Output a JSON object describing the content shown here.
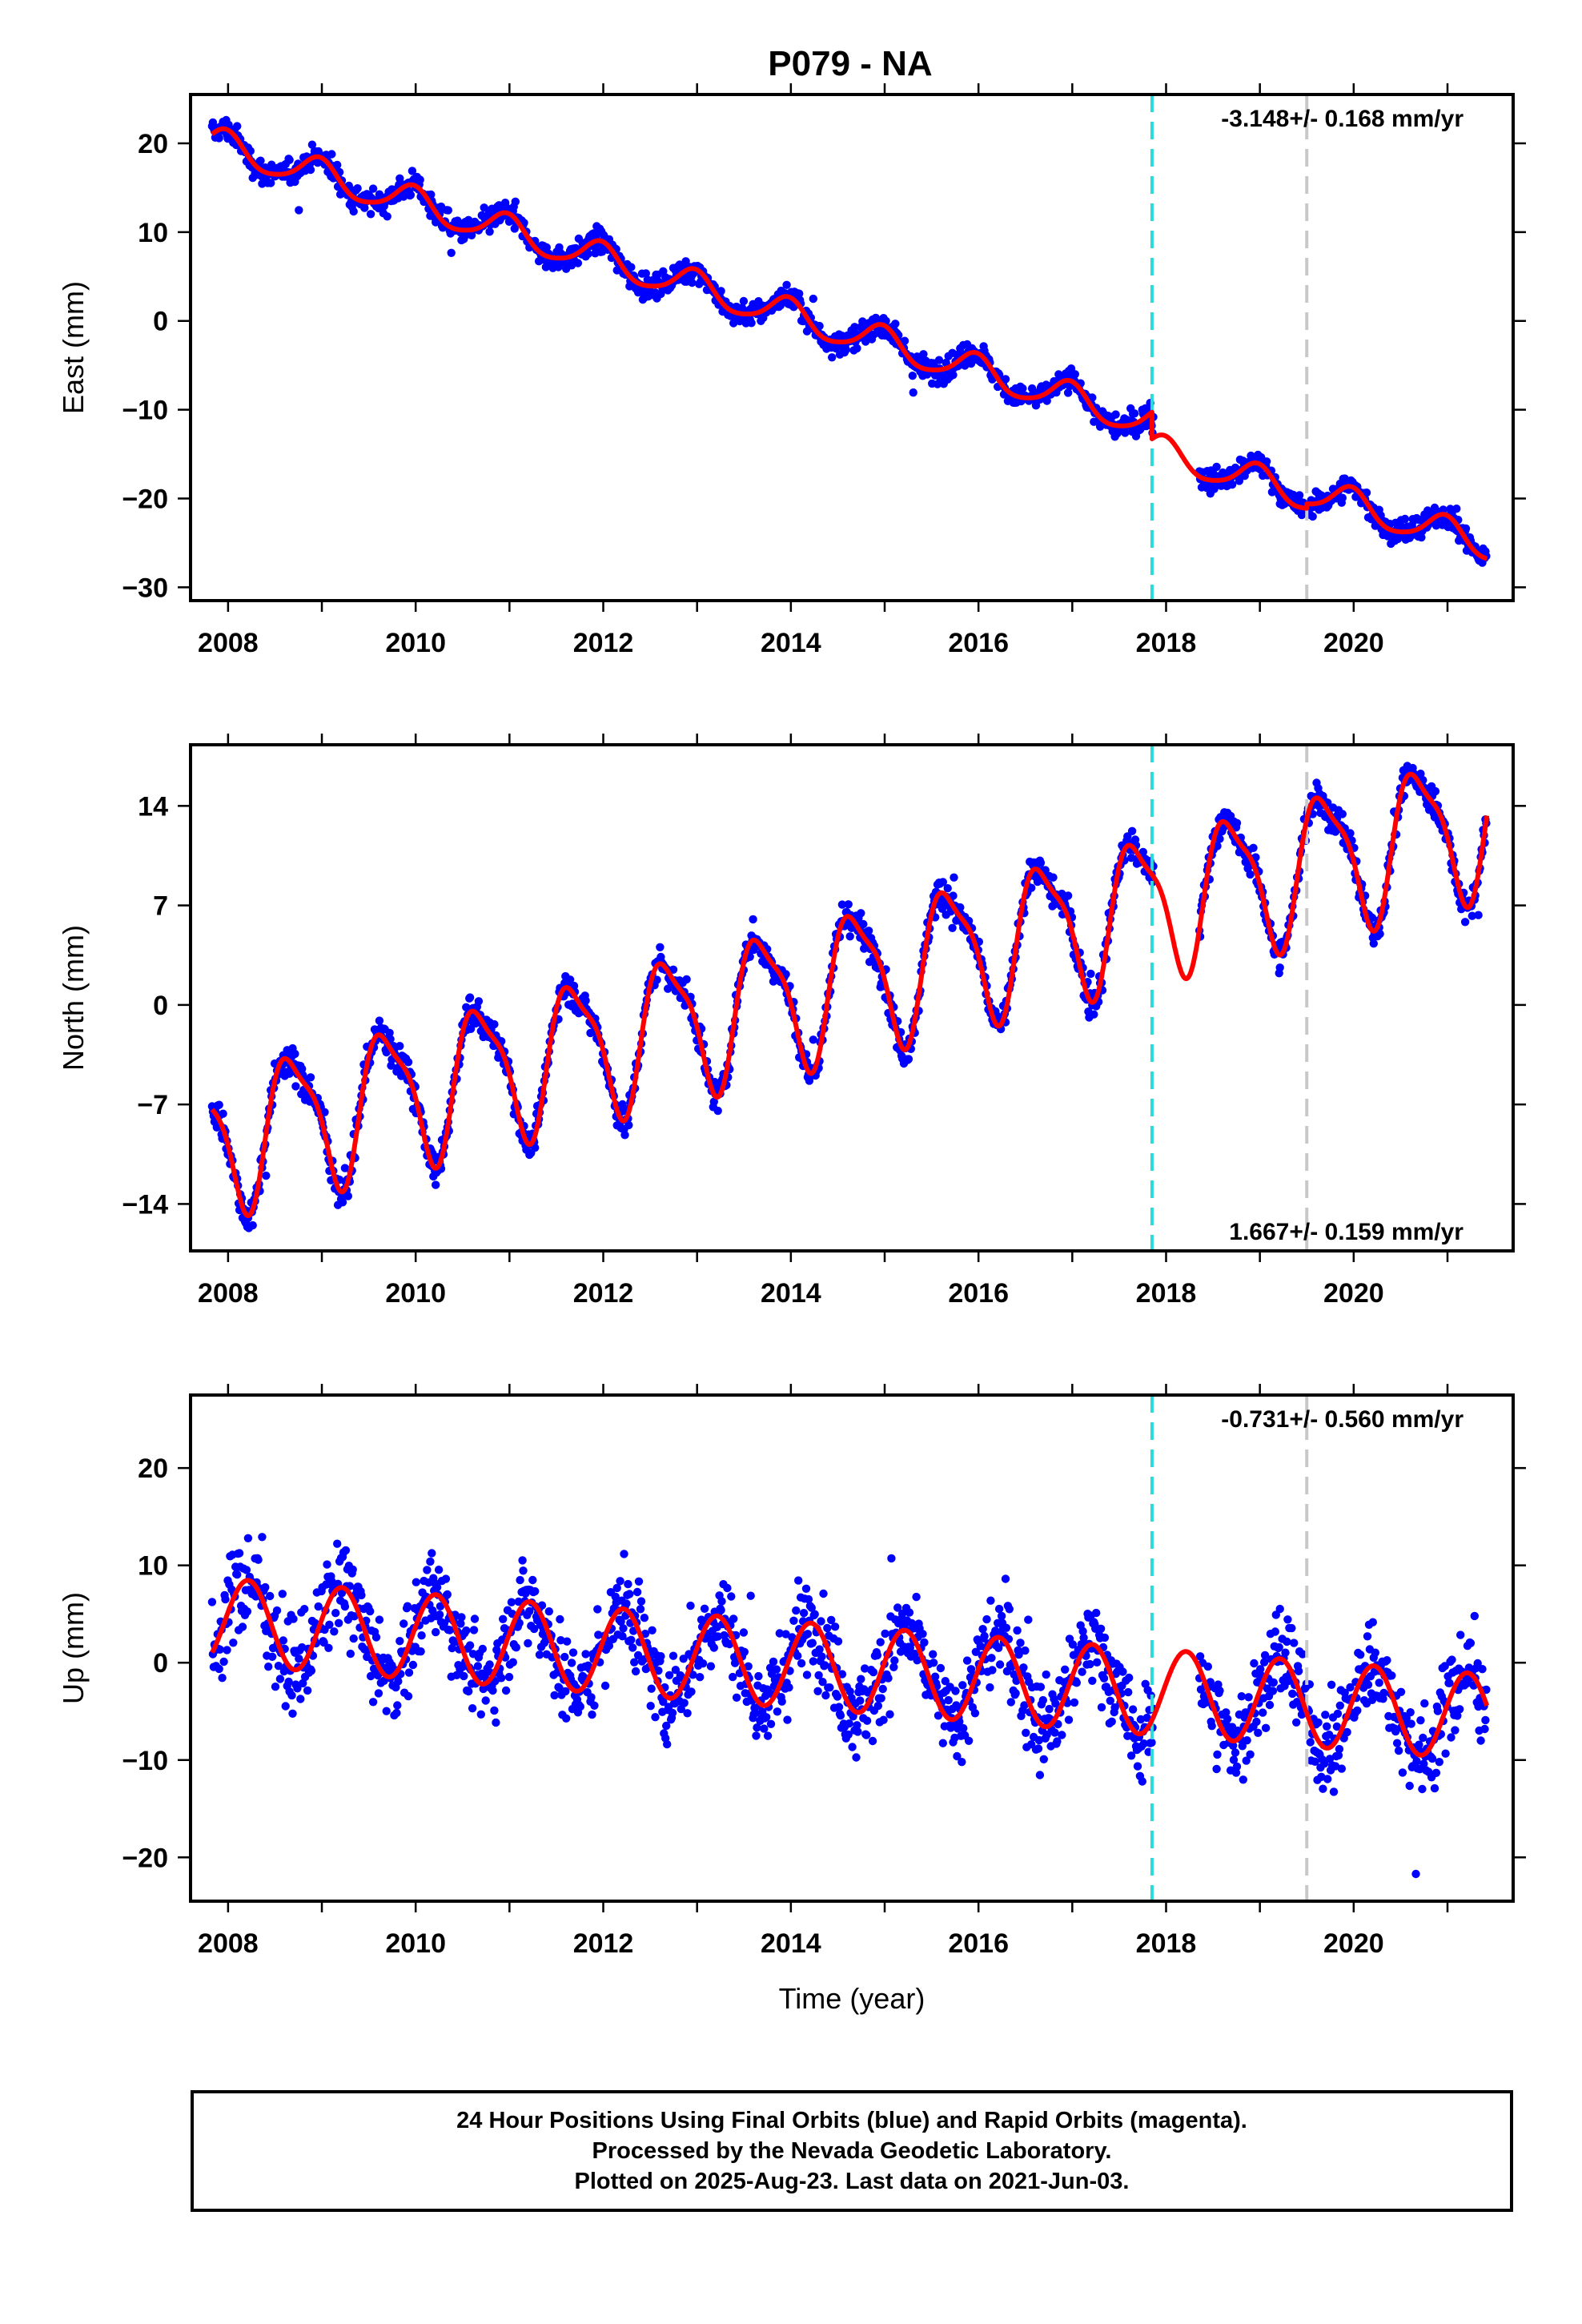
{
  "title": "P079 - NA",
  "chart_data": [
    {
      "type": "scatter",
      "component": "east",
      "ylabel": "East (mm)",
      "xlabel": "",
      "xlim": [
        2007.6,
        2021.7
      ],
      "ylim": [
        -31.5,
        25.5
      ],
      "yticks": [
        20,
        10,
        0,
        -10,
        -20,
        -30
      ],
      "xticks": [
        2008,
        2010,
        2012,
        2014,
        2016,
        2018,
        2020
      ],
      "rate_text": "-3.148+/- 0.168 mm/yr",
      "rate_position": "top-right",
      "vlines": [
        {
          "x": 2017.85,
          "kind": "equipment/earthquake",
          "color": "#28dcdc"
        },
        {
          "x": 2019.5,
          "kind": "antenna change",
          "color": "#c8c8c8"
        }
      ],
      "data_range": [
        2007.83,
        2021.42
      ],
      "model": {
        "rate": -3.148,
        "ref_epoch": 2008.0,
        "offset": 19.5,
        "annual_cos": 1.7,
        "annual_sin": -0.4,
        "semiannual": 0.3,
        "steps": [
          {
            "x": 2017.85,
            "size": -3.0
          },
          {
            "x": 2019.5,
            "size": 0.5
          }
        ],
        "noise_sd": 1.2
      },
      "series_color": "#0000ff",
      "model_color": "#ff0000"
    },
    {
      "type": "scatter",
      "component": "north",
      "ylabel": "North (mm)",
      "xlabel": "",
      "xlim": [
        2007.6,
        2021.7
      ],
      "ylim": [
        -17.3,
        18.3
      ],
      "yticks": [
        14,
        7,
        0,
        -7,
        -14
      ],
      "xticks": [
        2008,
        2010,
        2012,
        2014,
        2016,
        2018,
        2020
      ],
      "rate_text": "1.667+/- 0.159 mm/yr",
      "rate_position": "bottom-right",
      "vlines": [
        {
          "x": 2017.85,
          "kind": "equipment/earthquake",
          "color": "#28dcdc"
        },
        {
          "x": 2019.5,
          "kind": "antenna change",
          "color": "#c8c8c8"
        }
      ],
      "data_range": [
        2007.83,
        2021.42
      ],
      "model": {
        "rate": 1.667,
        "ref_epoch": 2008.0,
        "offset": -9.3,
        "annual_cos": -1.9,
        "annual_sin": -4.4,
        "semiannual": 1.3,
        "steps": [],
        "noise_sd": 1.0
      },
      "series_color": "#0000ff",
      "model_color": "#ff0000"
    },
    {
      "type": "scatter",
      "component": "up",
      "ylabel": "Up (mm)",
      "xlabel": "Time (year)",
      "xlim": [
        2007.6,
        2021.7
      ],
      "ylim": [
        -24.5,
        27.5
      ],
      "yticks": [
        20,
        10,
        0,
        -10,
        -20
      ],
      "xticks": [
        2008,
        2010,
        2012,
        2014,
        2016,
        2018,
        2020
      ],
      "rate_text": "-0.731+/- 0.560 mm/yr",
      "rate_position": "top-right",
      "vlines": [
        {
          "x": 2017.85,
          "kind": "equipment/earthquake",
          "color": "#28dcdc"
        },
        {
          "x": 2019.5,
          "kind": "antenna change",
          "color": "#c8c8c8"
        }
      ],
      "data_range": [
        2007.83,
        2021.42
      ],
      "model": {
        "rate": -0.731,
        "ref_epoch": 2008.0,
        "offset": 4.2,
        "annual_cos": 1.0,
        "annual_sin": 4.3,
        "semiannual": 0.0,
        "steps": [],
        "noise_sd": 4.2
      },
      "series_color": "#0000ff",
      "model_color": "#ff0000"
    }
  ],
  "caption": {
    "line1": "24 Hour Positions Using Final Orbits (blue) and Rapid Orbits (magenta).",
    "line2": "Processed by the Nevada Geodetic Laboratory.",
    "line3": "Plotted on 2025-Aug-23. Last data on 2021-Jun-03."
  }
}
